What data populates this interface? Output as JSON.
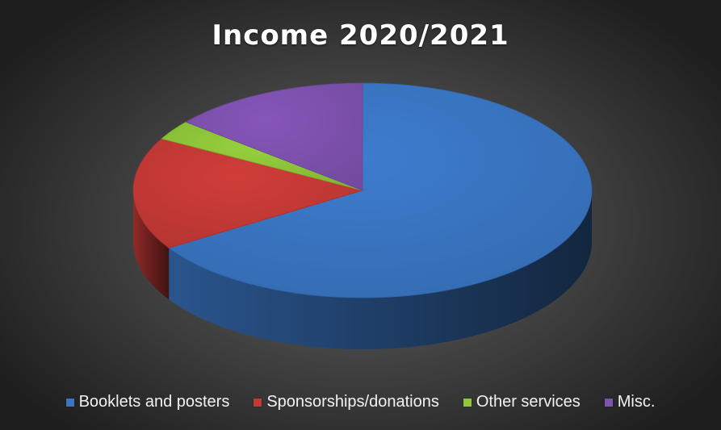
{
  "chart_data": {
    "type": "pie",
    "style": "3d",
    "title": "Income 2020/2021",
    "legend_position": "bottom",
    "slices": [
      {
        "label": "Booklets and posters",
        "value": 66,
        "color": "#3a76c4"
      },
      {
        "label": "Sponsorships/donations",
        "value": 17,
        "color": "#c63a36"
      },
      {
        "label": "Other services",
        "value": 3,
        "color": "#8fc63a"
      },
      {
        "label": "Misc.",
        "value": 14,
        "color": "#7f52b0"
      }
    ]
  }
}
